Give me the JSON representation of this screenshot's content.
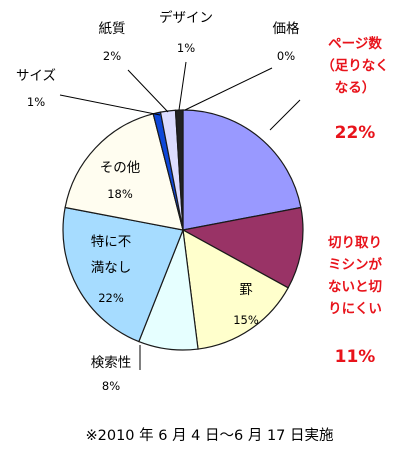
{
  "chart_data": {
    "type": "pie",
    "slices": [
      {
        "label": [
          "ページ数",
          "（足りなく",
          "なる）"
        ],
        "value": 22,
        "value_label": "22%",
        "color": "#9999ff",
        "label_color": "#e8131b"
      },
      {
        "label": [
          "切り取り",
          "ミシンが",
          "ないと切",
          "りにくい"
        ],
        "value": 11,
        "value_label": "11%",
        "color": "#993366",
        "label_color": "#e8131b"
      },
      {
        "label": [
          "罫"
        ],
        "value": 15,
        "value_label": "15%",
        "color": "#ffffcc",
        "label_color": "#000000"
      },
      {
        "label": [
          "検索性"
        ],
        "value": 8,
        "value_label": "8%",
        "color": "#e6ffff",
        "label_color": "#000000"
      },
      {
        "label": [
          "特に不",
          "満なし"
        ],
        "value": 22,
        "value_label": "22%",
        "color": "#a6dcff",
        "label_color": "#000000"
      },
      {
        "label": [
          "その他"
        ],
        "value": 18,
        "value_label": "18%",
        "color": "#fffdf0",
        "label_color": "#000000"
      },
      {
        "label": [
          "サイズ"
        ],
        "value": 1,
        "value_label": "1%",
        "color": "#0e47d9",
        "label_color": "#000000"
      },
      {
        "label": [
          "紙質"
        ],
        "value": 2,
        "value_label": "2%",
        "color": "#dcdcff",
        "label_color": "#000000"
      },
      {
        "label": [
          "デザイン"
        ],
        "value": 1,
        "value_label": "1%",
        "color": "#222222",
        "label_color": "#000000"
      },
      {
        "label": [
          "価格"
        ],
        "value": 0,
        "value_label": "0%",
        "color": "#000000",
        "label_color": "#000000"
      }
    ]
  },
  "footnote": "※2010 年 6 月 4 日～6 月 17 日実施"
}
